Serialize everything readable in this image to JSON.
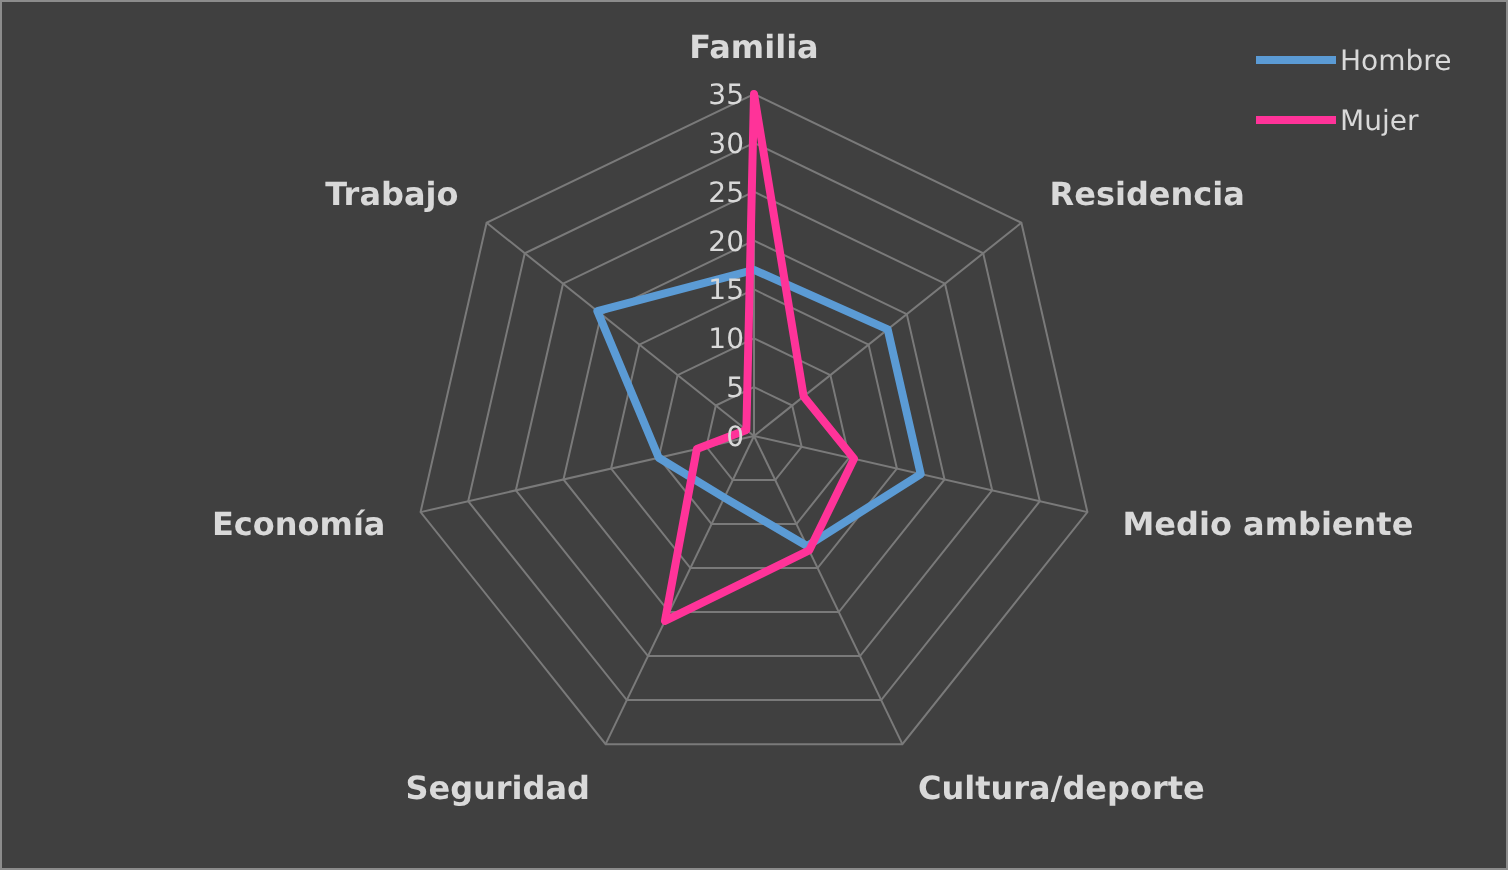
{
  "chart_data": {
    "type": "radar",
    "categories": [
      "Familia",
      "Residencia",
      "Medio ambiente",
      "Cultura/deporte",
      "Seguridad",
      "Economía",
      "Trabajo"
    ],
    "ylim": [
      0,
      35
    ],
    "yticks": [
      0,
      5,
      10,
      15,
      20,
      25,
      30,
      35
    ],
    "grid": true,
    "legend": "top right",
    "marker": "none",
    "line_style": "solid",
    "series": [
      {
        "name": "Hombre",
        "color": "#5b9bd5",
        "values": [
          17,
          17.5,
          17.5,
          12.5,
          7,
          10,
          20.5
        ]
      },
      {
        "name": "Mujer",
        "color": "#ff3399",
        "values": [
          35,
          6.5,
          10.5,
          13,
          21,
          6,
          1
        ]
      }
    ]
  }
}
